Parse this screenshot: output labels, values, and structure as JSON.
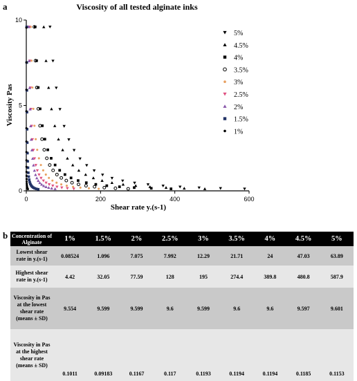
{
  "figure": {
    "panel_a_label": "a",
    "panel_b_label": "b"
  },
  "chart_data": {
    "type": "scatter",
    "title": "Viscosity of all tested alginate inks",
    "xlabel": "Shear rate y.(s-1)",
    "ylabel": "Viscosity Pas",
    "xlim": [
      0,
      600
    ],
    "ylim": [
      0,
      10
    ],
    "x_ticks": [
      "0",
      "200",
      "400",
      "600"
    ],
    "y_ticks": [
      "0",
      "5",
      "10"
    ],
    "grid": false,
    "legend_position": "right",
    "series": [
      {
        "name": "5%",
        "marker": "triangle-down",
        "color": "#000000",
        "x_min": 63.89,
        "x_max": 587.9,
        "y_start": 9.601,
        "y_end": 0.1153
      },
      {
        "name": "4.5%",
        "marker": "triangle-up",
        "color": "#000000",
        "x_min": 47.03,
        "x_max": 480.8,
        "y_start": 9.597,
        "y_end": 0.1185
      },
      {
        "name": "4%",
        "marker": "square",
        "color": "#000000",
        "x_min": 24,
        "x_max": 389.8,
        "y_start": 9.6,
        "y_end": 0.1194
      },
      {
        "name": "3.5%",
        "marker": "circle-open",
        "color": "#000000",
        "x_min": 21.71,
        "x_max": 274.4,
        "y_start": 9.6,
        "y_end": 0.1194
      },
      {
        "name": "3%",
        "marker": "dot",
        "color": "#e8a060",
        "x_min": 12.29,
        "x_max": 195,
        "y_start": 9.599,
        "y_end": 0.1193
      },
      {
        "name": "2.5%",
        "marker": "triangle-down",
        "color": "#e05080",
        "x_min": 7.992,
        "x_max": 128,
        "y_start": 9.6,
        "y_end": 0.117
      },
      {
        "name": "2%",
        "marker": "triangle-up",
        "color": "#8855aa",
        "x_min": 7.075,
        "x_max": 77.59,
        "y_start": 9.599,
        "y_end": 0.1167
      },
      {
        "name": "1.5%",
        "marker": "square",
        "color": "#223366",
        "x_min": 1.096,
        "x_max": 32.05,
        "y_start": 9.599,
        "y_end": 0.09183
      },
      {
        "name": "1%",
        "marker": "dot",
        "color": "#000000",
        "x_min": 0.08524,
        "x_max": 4.42,
        "y_start": 9.554,
        "y_end": 0.1011
      }
    ]
  },
  "table": {
    "headers": [
      "Concentration of Alginate",
      "1%",
      "1.5%",
      "2%",
      "2.5%",
      "3%",
      "3.5%",
      "4%",
      "4.5%",
      "5%"
    ],
    "rows": [
      {
        "label": "Lowest shear rate in y.(s-1)",
        "values": [
          "0.08524",
          "1.096",
          "7.075",
          "7.992",
          "12.29",
          "21.71",
          "24",
          "47.03",
          "63.89"
        ]
      },
      {
        "label": "Highest shear rate in y.(s-1)",
        "values": [
          "4.42",
          "32.05",
          "77.59",
          "128",
          "195",
          "274.4",
          "389.8",
          "480.8",
          "587.9"
        ]
      },
      {
        "label": "Viscosity in Pas at the lowest shear rate (means ± SD)",
        "values": [
          "9.554",
          "9.599",
          "9.599",
          "9.6",
          "9.599",
          "9.6",
          "9.6",
          "9.597",
          "9.601"
        ]
      },
      {
        "label": "Viscosity in Pas at the highest shear rate (means ± SD)",
        "values": [
          "0.1011",
          "0.09183",
          "0.1167",
          "0.117",
          "0.1193",
          "0.1194",
          "0.1194",
          "0.1185",
          "0.1153"
        ]
      }
    ]
  }
}
